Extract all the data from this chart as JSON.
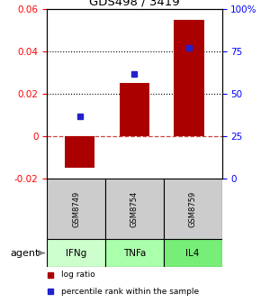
{
  "title": "GDS498 / 3419",
  "samples": [
    "IFNg",
    "TNFa",
    "IL4"
  ],
  "gsm_labels": [
    "GSM8749",
    "GSM8754",
    "GSM8759"
  ],
  "log_ratios": [
    -0.015,
    0.025,
    0.055
  ],
  "percentile_ranks": [
    0.37,
    0.62,
    0.77
  ],
  "ylim_left": [
    -0.02,
    0.06
  ],
  "ylim_right": [
    0.0,
    1.0
  ],
  "yticks_left": [
    -0.02,
    0.0,
    0.02,
    0.04,
    0.06
  ],
  "ytick_labels_left": [
    "-0.02",
    "0",
    "0.02",
    "0.04",
    "0.06"
  ],
  "yticks_right": [
    0.0,
    0.25,
    0.5,
    0.75,
    1.0
  ],
  "ytick_labels_right": [
    "0",
    "25",
    "50",
    "75",
    "100%"
  ],
  "dotted_lines": [
    0.02,
    0.04
  ],
  "bar_color": "#aa0000",
  "dot_color": "#2222cc",
  "zero_line_color": "#cc4444",
  "gsm_bg_color": "#cccccc",
  "agent_colors": [
    "#ccffcc",
    "#aaffaa",
    "#77ee77"
  ],
  "agent_label": "agent",
  "legend_log_ratio": "log ratio",
  "legend_percentile": "percentile rank within the sample",
  "bar_width": 0.55,
  "figsize": [
    2.9,
    3.36
  ],
  "dpi": 100
}
